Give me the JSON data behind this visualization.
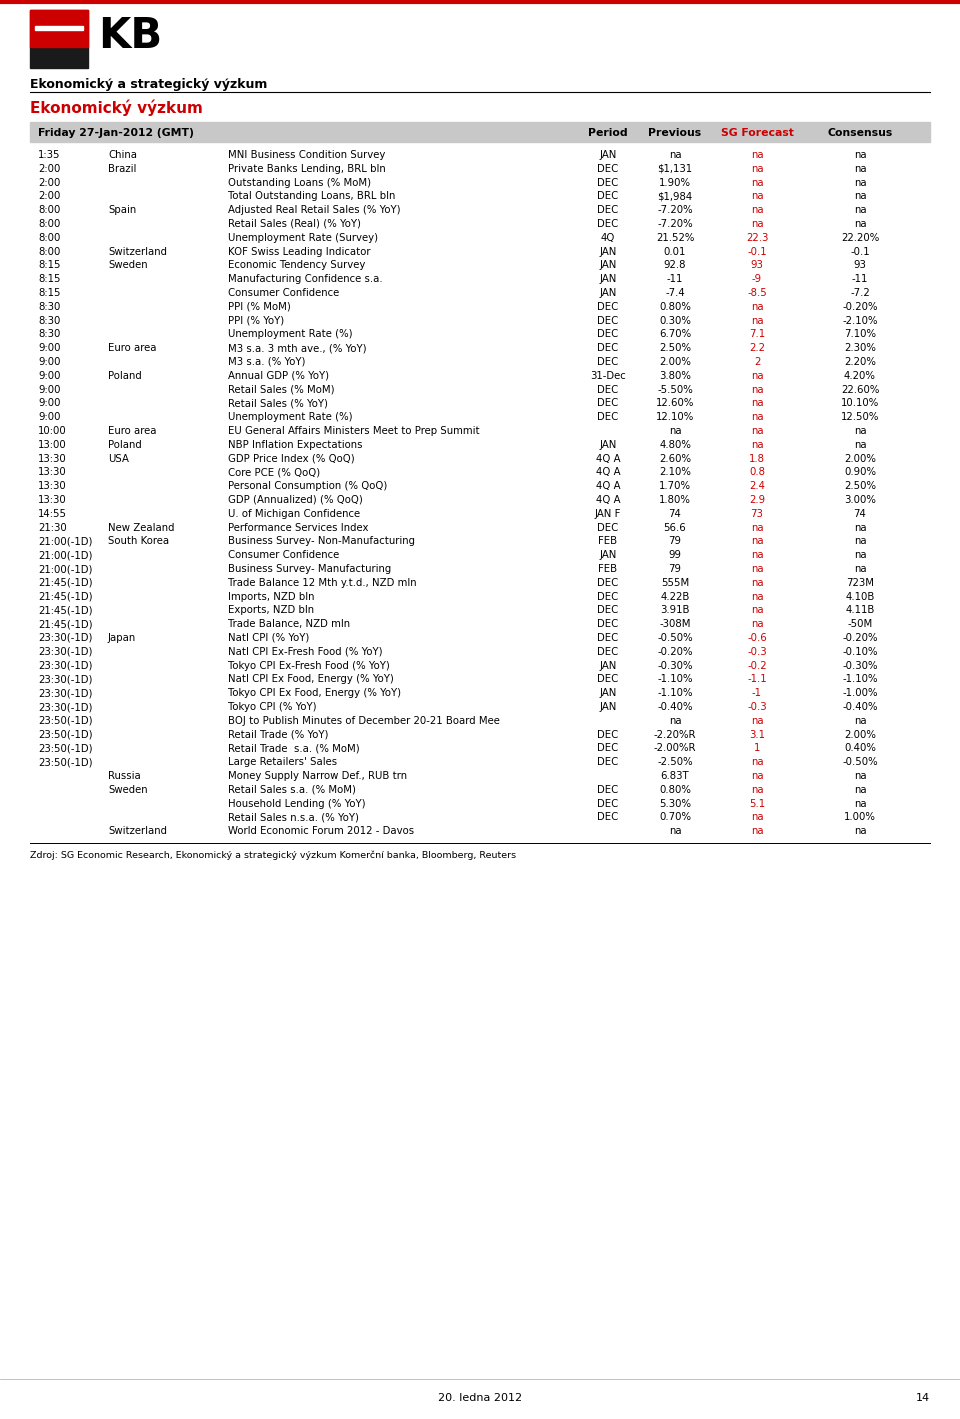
{
  "header_title": "Ekonomický a strategický výzkum",
  "section_title": "Ekonomický výzkum",
  "table_header": "Friday 27-Jan-2012 (GMT)",
  "columns": [
    "Period",
    "Previous",
    "SG Forecast",
    "Consensus"
  ],
  "footer": "Zdroj: SG Economic Research, Ekonomický a strategický výzkum Komerční banka, Bloomberg, Reuters",
  "page_number": "14",
  "page_date": "20. ledna 2012",
  "rows": [
    [
      "1:35",
      "China",
      "MNI Business Condition Survey",
      "JAN",
      "na",
      "na",
      "na"
    ],
    [
      "2:00",
      "Brazil",
      "Private Banks Lending, BRL bln",
      "DEC",
      "$1,131",
      "na",
      "na"
    ],
    [
      "2:00",
      "",
      "Outstanding Loans (% MoM)",
      "DEC",
      "1.90%",
      "na",
      "na"
    ],
    [
      "2:00",
      "",
      "Total Outstanding Loans, BRL bln",
      "DEC",
      "$1,984",
      "na",
      "na"
    ],
    [
      "8:00",
      "Spain",
      "Adjusted Real Retail Sales (% YoY)",
      "DEC",
      "-7.20%",
      "na",
      "na"
    ],
    [
      "8:00",
      "",
      "Retail Sales (Real) (% YoY)",
      "DEC",
      "-7.20%",
      "na",
      "na"
    ],
    [
      "8:00",
      "",
      "Unemployment Rate (Survey)",
      "4Q",
      "21.52%",
      "22.3",
      "22.20%"
    ],
    [
      "8:00",
      "Switzerland",
      "KOF Swiss Leading Indicator",
      "JAN",
      "0.01",
      "-0.1",
      "-0.1"
    ],
    [
      "8:15",
      "Sweden",
      "Economic Tendency Survey",
      "JAN",
      "92.8",
      "93",
      "93"
    ],
    [
      "8:15",
      "",
      "Manufacturing Confidence s.a.",
      "JAN",
      "-11",
      "-9",
      "-11"
    ],
    [
      "8:15",
      "",
      "Consumer Confidence",
      "JAN",
      "-7.4",
      "-8.5",
      "-7.2"
    ],
    [
      "8:30",
      "",
      "PPI (% MoM)",
      "DEC",
      "0.80%",
      "na",
      "-0.20%"
    ],
    [
      "8:30",
      "",
      "PPI (% YoY)",
      "DEC",
      "0.30%",
      "na",
      "-2.10%"
    ],
    [
      "8:30",
      "",
      "Unemployment Rate (%)",
      "DEC",
      "6.70%",
      "7.1",
      "7.10%"
    ],
    [
      "9:00",
      "Euro area",
      "M3 s.a. 3 mth ave., (% YoY)",
      "DEC",
      "2.50%",
      "2.2",
      "2.30%"
    ],
    [
      "9:00",
      "",
      "M3 s.a. (% YoY)",
      "DEC",
      "2.00%",
      "2",
      "2.20%"
    ],
    [
      "9:00",
      "Poland",
      "Annual GDP (% YoY)",
      "31-Dec",
      "3.80%",
      "na",
      "4.20%"
    ],
    [
      "9:00",
      "",
      "Retail Sales (% MoM)",
      "DEC",
      "-5.50%",
      "na",
      "22.60%"
    ],
    [
      "9:00",
      "",
      "Retail Sales (% YoY)",
      "DEC",
      "12.60%",
      "na",
      "10.10%"
    ],
    [
      "9:00",
      "",
      "Unemployment Rate (%)",
      "DEC",
      "12.10%",
      "na",
      "12.50%"
    ],
    [
      "10:00",
      "Euro area",
      "EU General Affairs Ministers Meet to Prep Summit",
      "",
      "na",
      "na",
      "na"
    ],
    [
      "13:00",
      "Poland",
      "NBP Inflation Expectations",
      "JAN",
      "4.80%",
      "na",
      "na"
    ],
    [
      "13:30",
      "USA",
      "GDP Price Index (% QoQ)",
      "4Q A",
      "2.60%",
      "1.8",
      "2.00%"
    ],
    [
      "13:30",
      "",
      "Core PCE (% QoQ)",
      "4Q A",
      "2.10%",
      "0.8",
      "0.90%"
    ],
    [
      "13:30",
      "",
      "Personal Consumption (% QoQ)",
      "4Q A",
      "1.70%",
      "2.4",
      "2.50%"
    ],
    [
      "13:30",
      "",
      "GDP (Annualized) (% QoQ)",
      "4Q A",
      "1.80%",
      "2.9",
      "3.00%"
    ],
    [
      "14:55",
      "",
      "U. of Michigan Confidence",
      "JAN F",
      "74",
      "73",
      "74"
    ],
    [
      "21:30",
      "New Zealand",
      "Performance Services Index",
      "DEC",
      "56.6",
      "na",
      "na"
    ],
    [
      "21:00(-1D)",
      "South Korea",
      "Business Survey- Non-Manufacturing",
      "FEB",
      "79",
      "na",
      "na"
    ],
    [
      "21:00(-1D)",
      "",
      "Consumer Confidence",
      "JAN",
      "99",
      "na",
      "na"
    ],
    [
      "21:00(-1D)",
      "",
      "Business Survey- Manufacturing",
      "FEB",
      "79",
      "na",
      "na"
    ],
    [
      "21:45(-1D)",
      "",
      "Trade Balance 12 Mth y.t.d., NZD mln",
      "DEC",
      "555M",
      "na",
      "723M"
    ],
    [
      "21:45(-1D)",
      "",
      "Imports, NZD bln",
      "DEC",
      "4.22B",
      "na",
      "4.10B"
    ],
    [
      "21:45(-1D)",
      "",
      "Exports, NZD bln",
      "DEC",
      "3.91B",
      "na",
      "4.11B"
    ],
    [
      "21:45(-1D)",
      "",
      "Trade Balance, NZD mln",
      "DEC",
      "-308M",
      "na",
      "-50M"
    ],
    [
      "23:30(-1D)",
      "Japan",
      "Natl CPI (% YoY)",
      "DEC",
      "-0.50%",
      "-0.6",
      "-0.20%"
    ],
    [
      "23:30(-1D)",
      "",
      "Natl CPI Ex-Fresh Food (% YoY)",
      "DEC",
      "-0.20%",
      "-0.3",
      "-0.10%"
    ],
    [
      "23:30(-1D)",
      "",
      "Tokyo CPI Ex-Fresh Food (% YoY)",
      "JAN",
      "-0.30%",
      "-0.2",
      "-0.30%"
    ],
    [
      "23:30(-1D)",
      "",
      "Natl CPI Ex Food, Energy (% YoY)",
      "DEC",
      "-1.10%",
      "-1.1",
      "-1.10%"
    ],
    [
      "23:30(-1D)",
      "",
      "Tokyo CPI Ex Food, Energy (% YoY)",
      "JAN",
      "-1.10%",
      "-1",
      "-1.00%"
    ],
    [
      "23:30(-1D)",
      "",
      "Tokyo CPI (% YoY)",
      "JAN",
      "-0.40%",
      "-0.3",
      "-0.40%"
    ],
    [
      "23:50(-1D)",
      "",
      "BOJ to Publish Minutes of December 20-21 Board Mee",
      "",
      "na",
      "na",
      "na"
    ],
    [
      "23:50(-1D)",
      "",
      "Retail Trade (% YoY)",
      "DEC",
      "-2.20%R",
      "3.1",
      "2.00%"
    ],
    [
      "23:50(-1D)",
      "",
      "Retail Trade  s.a. (% MoM)",
      "DEC",
      "-2.00%R",
      "1",
      "0.40%"
    ],
    [
      "23:50(-1D)",
      "",
      "Large Retailers' Sales",
      "DEC",
      "-2.50%",
      "na",
      "-0.50%"
    ],
    [
      "",
      "Russia",
      "Money Supply Narrow Def., RUB trn",
      "",
      "6.83T",
      "na",
      "na"
    ],
    [
      "",
      "Sweden",
      "Retail Sales s.a. (% MoM)",
      "DEC",
      "0.80%",
      "na",
      "na"
    ],
    [
      "",
      "",
      "Household Lending (% YoY)",
      "DEC",
      "5.30%",
      "5.1",
      "na"
    ],
    [
      "",
      "",
      "Retail Sales n.s.a. (% YoY)",
      "DEC",
      "0.70%",
      "na",
      "1.00%"
    ],
    [
      "",
      "Switzerland",
      "World Economic Forum 2012 - Davos",
      "",
      "na",
      "na",
      "na"
    ]
  ]
}
